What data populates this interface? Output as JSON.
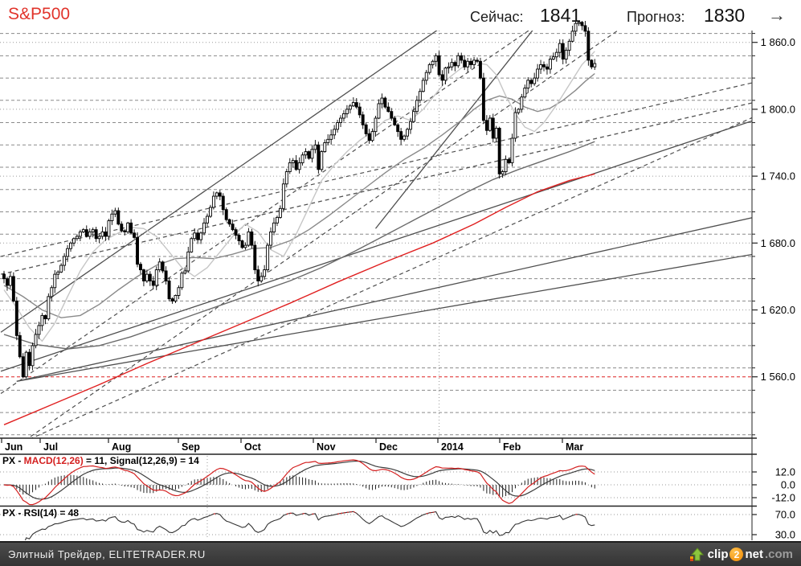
{
  "header": {
    "title": "S&P500",
    "now_label": "Сейчас:",
    "now_value": "1841",
    "forecast_label": "Прогноз:",
    "forecast_value": "1830",
    "arrow": "→"
  },
  "colors": {
    "title_red": "#e1342b",
    "grid_dashed": "#8a8a8a",
    "grid_dotted": "#9a9a9a",
    "red_dashed_line": "#dd2222",
    "trend_line": "#4f4f4f",
    "ma_light": "#c6c6c6",
    "ma_mid": "#8a8a8a",
    "ma_dark": "#6a6a6a",
    "ma_red": "#e02020",
    "candle_up": "#ffffff",
    "candle_down": "#000000",
    "candle_stroke": "#000000",
    "macd_line": "#d42020",
    "signal_line": "#3c3c3c",
    "histogram": "#222222",
    "axis_text": "#000000",
    "border": "#222222"
  },
  "chart_data": {
    "type": "candlestick",
    "symbol": "S&P500",
    "current_price": 1841,
    "forecast_price": 1830,
    "x_months": [
      {
        "label": "Jun",
        "pos": 2
      },
      {
        "label": "Jul",
        "pos": 50
      },
      {
        "label": "Aug",
        "pos": 135
      },
      {
        "label": "Sep",
        "pos": 222
      },
      {
        "label": "Oct",
        "pos": 300
      },
      {
        "label": "Nov",
        "pos": 390
      },
      {
        "label": "Dec",
        "pos": 468
      },
      {
        "label": "2014",
        "pos": 545
      },
      {
        "label": "Feb",
        "pos": 622
      },
      {
        "label": "Mar",
        "pos": 700
      }
    ],
    "y_ticks": [
      {
        "label": "1 860.0",
        "value": 1860
      },
      {
        "label": "1 800.0",
        "value": 1800
      },
      {
        "label": "1 740.0",
        "value": 1740
      },
      {
        "label": "1 680.0",
        "value": 1680
      },
      {
        "label": "1 620.0",
        "value": 1620
      },
      {
        "label": "1 560.0",
        "value": 1560
      }
    ],
    "red_dashed_level": 1560,
    "vertical_line_day": 137,
    "closes": [
      1648,
      1642,
      1650,
      1628,
      1597,
      1578,
      1560,
      1582,
      1570,
      1588,
      1598,
      1606,
      1615,
      1612,
      1632,
      1640,
      1652,
      1654,
      1660,
      1668,
      1675,
      1680,
      1684,
      1686,
      1690,
      1692,
      1686,
      1690,
      1692,
      1684,
      1686,
      1690,
      1686,
      1700,
      1706,
      1709,
      1697,
      1691,
      1690,
      1698,
      1689,
      1685,
      1661,
      1656,
      1646,
      1652,
      1646,
      1642,
      1656,
      1663,
      1655,
      1646,
      1630,
      1628,
      1633,
      1640,
      1653,
      1655,
      1672,
      1684,
      1689,
      1683,
      1689,
      1698,
      1704,
      1712,
      1722,
      1725,
      1722,
      1710,
      1701,
      1697,
      1692,
      1687,
      1682,
      1676,
      1678,
      1690,
      1678,
      1656,
      1646,
      1650,
      1656,
      1678,
      1690,
      1698,
      1703,
      1711,
      1733,
      1744,
      1752,
      1754,
      1746,
      1752,
      1759,
      1762,
      1756,
      1764,
      1768,
      1746,
      1762,
      1770,
      1773,
      1777,
      1782,
      1788,
      1792,
      1796,
      1800,
      1803,
      1806,
      1802,
      1795,
      1786,
      1778,
      1772,
      1780,
      1792,
      1805,
      1810,
      1802,
      1798,
      1792,
      1786,
      1780,
      1773,
      1776,
      1782,
      1789,
      1798,
      1808,
      1816,
      1826,
      1833,
      1840,
      1843,
      1848,
      1831,
      1826,
      1837,
      1838,
      1842,
      1839,
      1848,
      1844,
      1838,
      1843,
      1840,
      1844,
      1843,
      1828,
      1790,
      1781,
      1792,
      1774,
      1783,
      1742,
      1744,
      1755,
      1752,
      1774,
      1797,
      1800,
      1811,
      1819,
      1826,
      1823,
      1828,
      1836,
      1840,
      1838,
      1836,
      1845,
      1847,
      1851,
      1859,
      1845,
      1853,
      1861,
      1870,
      1877,
      1878,
      1875,
      1870,
      1844,
      1838,
      1841
    ],
    "ma_light_20": [
      [
        0,
        1638
      ],
      [
        4,
        1622
      ],
      [
        8,
        1604
      ],
      [
        12,
        1592
      ],
      [
        16,
        1608
      ],
      [
        20,
        1632
      ],
      [
        24,
        1655
      ],
      [
        28,
        1672
      ],
      [
        32,
        1683
      ],
      [
        36,
        1689
      ],
      [
        40,
        1694
      ],
      [
        44,
        1693
      ],
      [
        48,
        1686
      ],
      [
        52,
        1672
      ],
      [
        56,
        1658
      ],
      [
        60,
        1650
      ],
      [
        64,
        1658
      ],
      [
        68,
        1672
      ],
      [
        72,
        1686
      ],
      [
        76,
        1697
      ],
      [
        80,
        1690
      ],
      [
        84,
        1674
      ],
      [
        88,
        1668
      ],
      [
        92,
        1688
      ],
      [
        96,
        1712
      ],
      [
        100,
        1736
      ],
      [
        104,
        1750
      ],
      [
        108,
        1762
      ],
      [
        112,
        1772
      ],
      [
        116,
        1780
      ],
      [
        120,
        1790
      ],
      [
        124,
        1794
      ],
      [
        128,
        1790
      ],
      [
        132,
        1800
      ],
      [
        136,
        1814
      ],
      [
        140,
        1828
      ],
      [
        144,
        1837
      ],
      [
        148,
        1842
      ],
      [
        152,
        1840
      ],
      [
        155,
        1831
      ],
      [
        158,
        1812
      ],
      [
        161,
        1796
      ],
      [
        164,
        1784
      ],
      [
        167,
        1780
      ],
      [
        170,
        1788
      ],
      [
        174,
        1804
      ],
      [
        178,
        1822
      ],
      [
        182,
        1840
      ],
      [
        186,
        1852
      ]
    ],
    "ma_mid_50": [
      [
        0,
        1642
      ],
      [
        6,
        1632
      ],
      [
        12,
        1620
      ],
      [
        18,
        1613
      ],
      [
        24,
        1615
      ],
      [
        30,
        1625
      ],
      [
        36,
        1638
      ],
      [
        42,
        1650
      ],
      [
        48,
        1660
      ],
      [
        54,
        1666
      ],
      [
        60,
        1667
      ],
      [
        66,
        1666
      ],
      [
        72,
        1670
      ],
      [
        78,
        1675
      ],
      [
        84,
        1676
      ],
      [
        90,
        1682
      ],
      [
        96,
        1692
      ],
      [
        102,
        1704
      ],
      [
        108,
        1717
      ],
      [
        114,
        1730
      ],
      [
        120,
        1743
      ],
      [
        126,
        1755
      ],
      [
        132,
        1765
      ],
      [
        138,
        1777
      ],
      [
        144,
        1790
      ],
      [
        148,
        1800
      ],
      [
        152,
        1808
      ],
      [
        156,
        1812
      ],
      [
        160,
        1809
      ],
      [
        164,
        1802
      ],
      [
        168,
        1798
      ],
      [
        172,
        1801
      ],
      [
        176,
        1808
      ],
      [
        180,
        1817
      ],
      [
        183,
        1825
      ],
      [
        186,
        1832
      ]
    ],
    "ma_dark_100": [
      [
        0,
        1598
      ],
      [
        10,
        1589
      ],
      [
        20,
        1585
      ],
      [
        30,
        1588
      ],
      [
        40,
        1596
      ],
      [
        50,
        1606
      ],
      [
        60,
        1616
      ],
      [
        70,
        1626
      ],
      [
        80,
        1636
      ],
      [
        90,
        1646
      ],
      [
        100,
        1658
      ],
      [
        110,
        1672
      ],
      [
        120,
        1687
      ],
      [
        130,
        1702
      ],
      [
        138,
        1714
      ],
      [
        146,
        1726
      ],
      [
        154,
        1737
      ],
      [
        162,
        1746
      ],
      [
        170,
        1754
      ],
      [
        178,
        1762
      ],
      [
        186,
        1771
      ]
    ],
    "ma_red_200": [
      [
        0,
        1517
      ],
      [
        15,
        1535
      ],
      [
        30,
        1553
      ],
      [
        45,
        1572
      ],
      [
        60,
        1590
      ],
      [
        75,
        1608
      ],
      [
        90,
        1626
      ],
      [
        105,
        1645
      ],
      [
        120,
        1663
      ],
      [
        135,
        1680
      ],
      [
        148,
        1697
      ],
      [
        158,
        1712
      ],
      [
        168,
        1726
      ],
      [
        178,
        1736
      ],
      [
        186,
        1742
      ]
    ],
    "trend_lines_solid": [
      [
        -1,
        1600,
        141,
        1880
      ],
      [
        4,
        1556,
        236,
        1703
      ],
      [
        4,
        1556,
        236,
        1670
      ],
      [
        -1,
        1565,
        236,
        1790
      ],
      [
        117,
        1693,
        169,
        1880
      ]
    ],
    "trend_lines_dashed": [
      [
        -1,
        1545,
        170,
        1880
      ],
      [
        -1,
        1488,
        198,
        1880
      ],
      [
        -1,
        1668,
        236,
        1824
      ],
      [
        -1,
        1652,
        236,
        1806
      ],
      [
        8,
        1504,
        236,
        1793
      ]
    ],
    "macd": {
      "label_p1": "PX - ",
      "label_p2": "MACD(12,26)",
      "label_p3": " = 11, Signal(12,26,9) = 14",
      "fast": 12,
      "slow": 26,
      "signal": 9,
      "last_macd": 11,
      "last_signal": 14,
      "ticks": [
        {
          "label": "12.0",
          "value": 12
        },
        {
          "label": "0.0",
          "value": 0
        },
        {
          "label": "-12.0",
          "value": -12
        }
      ],
      "dotted_levels": [
        12,
        0,
        -12
      ]
    },
    "rsi": {
      "label": "PX - RSI(14) = 48",
      "period": 14,
      "last_value": 48,
      "ticks": [
        {
          "label": "70.0",
          "value": 70
        },
        {
          "label": "30.0",
          "value": 30
        }
      ],
      "dotted_levels": [
        70,
        30
      ],
      "overbought_level": 70
    }
  },
  "footer": {
    "site_text": "Элитный Трейдер, ELITETRADER.RU",
    "logo": {
      "clip": "clip",
      "two": "2",
      "net": "net",
      "com": ".com"
    }
  }
}
